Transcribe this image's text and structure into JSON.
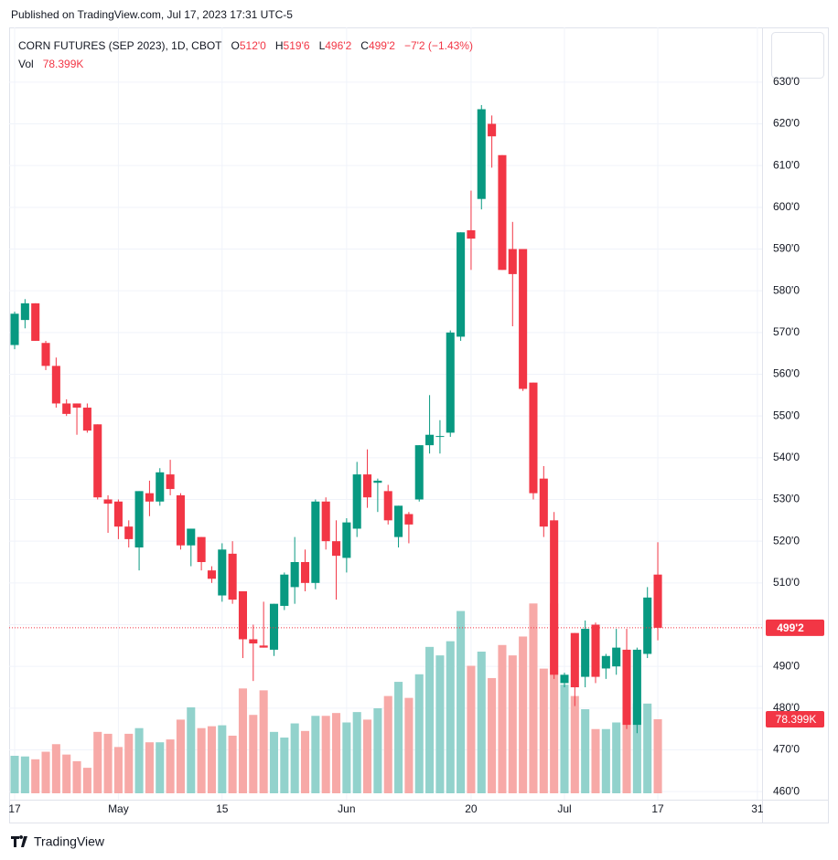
{
  "header": "Published on TradingView.com, Jul 17, 2023 17:31 UTC-5",
  "footer": "TradingView",
  "chart_data": {
    "type": "candlestick",
    "title": "CORN FUTURES (SEP 2023), 1D, CBOT",
    "legend": {
      "open_label": "O",
      "open": "512'0",
      "high_label": "H",
      "high": "519'6",
      "low_label": "L",
      "low": "496'2",
      "close_label": "C",
      "close": "499'2",
      "change": "−7'2 (−1.43%)"
    },
    "up_color": "#089981",
    "down_color": "#f23645",
    "volume_up_color": "#92d2cc",
    "volume_down_color": "#f7a9a7",
    "open": [
      567,
      573,
      577,
      567.5,
      562,
      553,
      553,
      552,
      548,
      530,
      529.5,
      523.5,
      518.5,
      531.5,
      529.5,
      536,
      531,
      519,
      521,
      513,
      507,
      517,
      508,
      496.5,
      495,
      494,
      504.5,
      509,
      515,
      510,
      529.5,
      520,
      516,
      523,
      536,
      534,
      532,
      521,
      526.5,
      530,
      543,
      545,
      546,
      569,
      594.5,
      602,
      620,
      612.5,
      590,
      590,
      558,
      535,
      525,
      486,
      498,
      487.5,
      500,
      489.5,
      490,
      494,
      476,
      493,
      512
    ],
    "high": [
      575,
      578,
      577,
      568,
      564,
      554,
      553,
      553,
      548,
      531,
      530,
      525,
      532,
      534.5,
      537.5,
      539.5,
      531.5,
      523,
      521,
      514,
      519.5,
      520,
      508,
      500,
      505.5,
      505,
      512.5,
      521,
      518,
      530,
      530.5,
      525,
      525.5,
      539,
      542,
      535,
      533.5,
      528.5,
      527,
      543,
      555,
      549,
      570.5,
      594,
      604,
      624.5,
      622,
      612.5,
      596.5,
      590,
      558,
      538,
      527,
      488.5,
      498,
      501,
      500.5,
      493,
      499,
      499,
      494.5,
      509,
      519.75
    ],
    "low": [
      566,
      571,
      568,
      561,
      552,
      550,
      545.5,
      546,
      530,
      522,
      520.5,
      518.5,
      513,
      526,
      528.5,
      531,
      518,
      514,
      513,
      510,
      505.5,
      505,
      492,
      486.5,
      494.5,
      492.5,
      503.5,
      505,
      508,
      508.5,
      518,
      506,
      512.5,
      521,
      528,
      527,
      524,
      518.5,
      519.5,
      529.5,
      541,
      541,
      545,
      568,
      585,
      599.5,
      609.5,
      585,
      571.5,
      556,
      530,
      521,
      487,
      485,
      480.5,
      485,
      486,
      487,
      488,
      475,
      474,
      492,
      496.25
    ],
    "close": [
      574.5,
      577,
      568,
      562,
      553,
      550.5,
      552,
      546.5,
      530.5,
      529,
      523.5,
      520.5,
      532,
      529.5,
      536.5,
      532.5,
      519,
      523,
      515,
      511,
      518,
      506,
      496.5,
      495.5,
      494.5,
      505,
      512,
      515,
      510,
      529.5,
      520,
      516.5,
      524.5,
      536,
      530.5,
      534.5,
      525,
      528.5,
      524,
      543,
      545.5,
      545.2,
      570,
      594,
      592.5,
      623.5,
      617,
      585,
      584,
      556.5,
      531.5,
      523.5,
      488,
      488,
      485,
      499,
      487.5,
      492.5,
      494.5,
      476,
      494,
      506.5,
      499.25
    ],
    "last_price_label": "499'2",
    "volume_name": "Vol",
    "volume": [
      39.7,
      39,
      36,
      44,
      52,
      41,
      34,
      27,
      65,
      63,
      49,
      63,
      69,
      54,
      54,
      57,
      78,
      91,
      69,
      71,
      72,
      61,
      111,
      83,
      109,
      65,
      59,
      74,
      66,
      82,
      82,
      85,
      75,
      86,
      78,
      90,
      103,
      118,
      101,
      126,
      155,
      146,
      161,
      193,
      135,
      150,
      122,
      157,
      146,
      166,
      201,
      132,
      201,
      115,
      103,
      89,
      68,
      68,
      75,
      75,
      95,
      95,
      78.399
    ],
    "volume_label": "78.399K",
    "vol_ylim": [
      0,
      270
    ],
    "xlim": [
      -0.53,
      72.05
    ],
    "xticks": [
      {
        "value": 0,
        "label": "17"
      },
      {
        "value": 10,
        "label": "May"
      },
      {
        "value": 20,
        "label": "15"
      },
      {
        "value": 32,
        "label": "Jun"
      },
      {
        "value": 44,
        "label": "20"
      },
      {
        "value": 53,
        "label": "Jul"
      },
      {
        "value": 62,
        "label": "17"
      },
      {
        "value": 71.6,
        "label": "31"
      }
    ],
    "ylim": [
      459.6,
      643.1
    ],
    "yticks": [
      {
        "value": 460,
        "label": "460'0"
      },
      {
        "value": 470,
        "label": "470'0"
      },
      {
        "value": 480,
        "label": "480'0"
      },
      {
        "value": 490,
        "label": "490'0"
      },
      {
        "value": 500,
        "label": "500'0"
      },
      {
        "value": 510,
        "label": "510'0"
      },
      {
        "value": 520,
        "label": "520'0"
      },
      {
        "value": 530,
        "label": "530'0"
      },
      {
        "value": 540,
        "label": "540'0"
      },
      {
        "value": 550,
        "label": "550'0"
      },
      {
        "value": 560,
        "label": "560'0"
      },
      {
        "value": 570,
        "label": "570'0"
      },
      {
        "value": 580,
        "label": "580'0"
      },
      {
        "value": 590,
        "label": "590'0"
      },
      {
        "value": 600,
        "label": "600'0"
      },
      {
        "value": 610,
        "label": "610'0"
      },
      {
        "value": 620,
        "label": "620'0"
      },
      {
        "value": 630,
        "label": "630'0"
      }
    ],
    "grid": true
  }
}
